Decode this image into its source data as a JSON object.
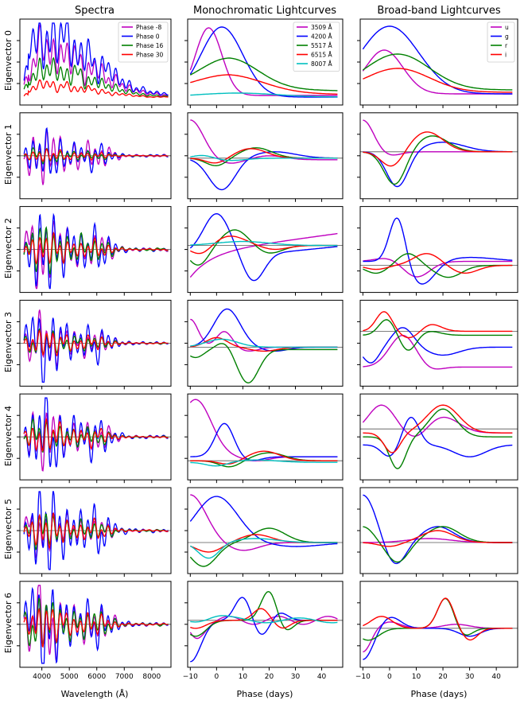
{
  "figure": {
    "column_titles": [
      "Spectra",
      "Monochromatic Lightcurves",
      "Broad-band Lightcurves"
    ],
    "row_labels": [
      "Eigenvector 0",
      "Eigenvector 1",
      "Eigenvector 2",
      "Eigenvector 3",
      "Eigenvector 4",
      "Eigenvector 5",
      "Eigenvector 6"
    ],
    "xlabels": [
      "Wavelength (Å)",
      "Phase (days)",
      "Phase (days)"
    ]
  },
  "chart_data": [
    {
      "type": "line",
      "panel": "spectra",
      "xlabel": "Wavelength (Å)",
      "xlim": [
        3200,
        8700
      ],
      "xticks": [
        4000,
        5000,
        6000,
        7000,
        8000
      ],
      "legend": {
        "placement": "top-right",
        "entries": [
          {
            "label": "Phase -8",
            "color": "#bf00bf"
          },
          {
            "label": "Phase 0",
            "color": "#0000ff"
          },
          {
            "label": "Phase 16",
            "color": "#008000"
          },
          {
            "label": "Phase 30",
            "color": "#ff0000"
          }
        ]
      }
    },
    {
      "type": "line",
      "panel": "monochromatic",
      "xlabel": "Phase (days)",
      "xlim": [
        -11,
        48
      ],
      "xticks": [
        -10,
        0,
        10,
        20,
        30,
        40
      ],
      "legend": {
        "placement": "top-right",
        "entries": [
          {
            "label": "3509 Å",
            "color": "#bf00bf"
          },
          {
            "label": "4200 Å",
            "color": "#0000ff"
          },
          {
            "label": "5517 Å",
            "color": "#008000"
          },
          {
            "label": "6515 Å",
            "color": "#ff0000"
          },
          {
            "label": "8007 Å",
            "color": "#00bfbf"
          }
        ]
      }
    },
    {
      "type": "line",
      "panel": "broadband",
      "xlabel": "Phase (days)",
      "xlim": [
        -11,
        48
      ],
      "xticks": [
        -10,
        0,
        10,
        20,
        30,
        40
      ],
      "legend": {
        "placement": "top-right",
        "entries": [
          {
            "label": "u",
            "color": "#bf00bf"
          },
          {
            "label": "g",
            "color": "#0000ff"
          },
          {
            "label": "r",
            "color": "#008000"
          },
          {
            "label": "i",
            "color": "#ff0000"
          }
        ]
      }
    }
  ]
}
